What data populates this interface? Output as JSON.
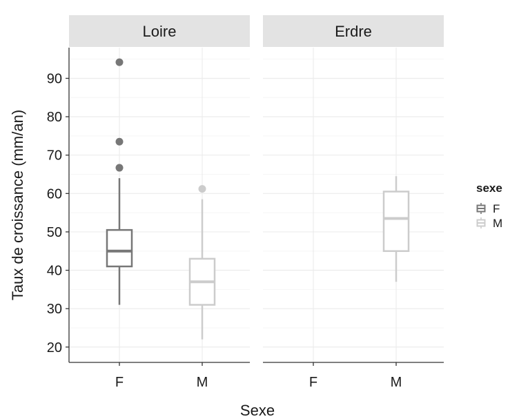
{
  "chart_data": {
    "type": "boxplot",
    "xlabel": "Sexe",
    "ylabel": "Taux de croissance (mm/an)",
    "ylim": [
      16,
      98
    ],
    "yticks": [
      20,
      30,
      40,
      50,
      60,
      70,
      80,
      90
    ],
    "categories": [
      "F",
      "M"
    ],
    "grid": true,
    "legend": {
      "title": "sexe",
      "position": "right",
      "entries": [
        {
          "label": "F",
          "color": "#777777"
        },
        {
          "label": "M",
          "color": "#cccccc"
        }
      ]
    },
    "panels": [
      {
        "strip": "Loire",
        "boxes": [
          {
            "x": "F",
            "whisker_low": 31,
            "q1": 41,
            "median": 45,
            "q3": 50.5,
            "whisker_high": 64,
            "outliers": [
              66.7,
              73.5,
              94.2
            ]
          },
          {
            "x": "M",
            "whisker_low": 22,
            "q1": 31,
            "median": 37,
            "q3": 43,
            "whisker_high": 58.5,
            "outliers": [
              61.2
            ]
          }
        ]
      },
      {
        "strip": "Erdre",
        "boxes": [
          {
            "x": "M",
            "whisker_low": 37,
            "q1": 45,
            "median": 53.5,
            "q3": 60.5,
            "whisker_high": 64.5,
            "outliers": []
          }
        ]
      }
    ]
  }
}
